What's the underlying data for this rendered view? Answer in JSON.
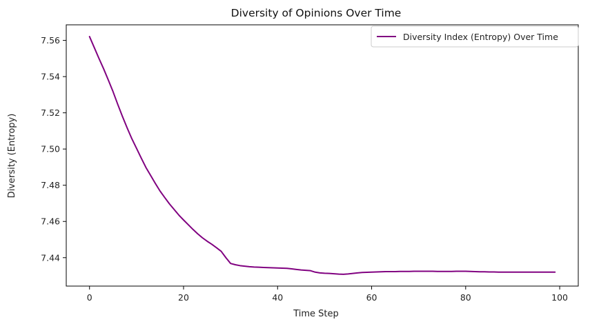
{
  "chart_data": {
    "type": "line",
    "title": "Diversity of Opinions Over Time",
    "xlabel": "Time Step",
    "ylabel": "Diversity (Entropy)",
    "xlim": [
      -4.95,
      103.95
    ],
    "ylim": [
      7.4243,
      7.5686
    ],
    "xticks": [
      0,
      20,
      40,
      60,
      80,
      100
    ],
    "yticks": [
      7.44,
      7.46,
      7.48,
      7.5,
      7.52,
      7.54,
      7.56
    ],
    "grid": false,
    "legend_position": "top-right",
    "series": [
      {
        "name": "Diversity Index (Entropy) Over Time",
        "color": "#800080",
        "x": [
          0,
          1,
          2,
          3,
          4,
          5,
          6,
          7,
          8,
          9,
          10,
          11,
          12,
          13,
          14,
          15,
          16,
          17,
          18,
          19,
          20,
          21,
          22,
          23,
          24,
          25,
          26,
          27,
          28,
          29,
          30,
          31,
          32,
          33,
          34,
          35,
          36,
          37,
          38,
          39,
          40,
          41,
          42,
          43,
          44,
          45,
          46,
          47,
          48,
          49,
          50,
          51,
          52,
          53,
          54,
          55,
          56,
          57,
          58,
          59,
          60,
          61,
          62,
          63,
          64,
          65,
          66,
          67,
          68,
          69,
          70,
          71,
          72,
          73,
          74,
          75,
          76,
          77,
          78,
          79,
          80,
          81,
          82,
          83,
          84,
          85,
          86,
          87,
          88,
          89,
          90,
          91,
          92,
          93,
          94,
          95,
          96,
          97,
          98,
          99
        ],
        "y": [
          7.5621,
          7.5561,
          7.5501,
          7.5443,
          7.5381,
          7.5317,
          7.5247,
          7.518,
          7.5117,
          7.5057,
          7.5004,
          7.495,
          7.4898,
          7.4854,
          7.481,
          7.4768,
          7.4732,
          7.4697,
          7.4666,
          7.4635,
          7.4608,
          7.4582,
          7.4556,
          7.4532,
          7.451,
          7.4491,
          7.4474,
          7.4455,
          7.4435,
          7.44,
          7.4368,
          7.4361,
          7.4356,
          7.4353,
          7.435,
          7.4348,
          7.4347,
          7.4346,
          7.4345,
          7.4344,
          7.4343,
          7.4342,
          7.4341,
          7.4338,
          7.4335,
          7.4332,
          7.433,
          7.4328,
          7.432,
          7.4316,
          7.4314,
          7.4313,
          7.4311,
          7.4309,
          7.4308,
          7.431,
          7.4313,
          7.4316,
          7.4318,
          7.4319,
          7.432,
          7.4321,
          7.4322,
          7.4323,
          7.4323,
          7.4323,
          7.4324,
          7.4324,
          7.4324,
          7.4325,
          7.4325,
          7.4325,
          7.4325,
          7.4325,
          7.4324,
          7.4324,
          7.4324,
          7.4324,
          7.4325,
          7.4325,
          7.4325,
          7.4324,
          7.4323,
          7.4322,
          7.4322,
          7.4321,
          7.4321,
          7.432,
          7.432,
          7.432,
          7.432,
          7.432,
          7.432,
          7.432,
          7.432,
          7.432,
          7.432,
          7.432,
          7.432,
          7.432
        ]
      }
    ]
  }
}
